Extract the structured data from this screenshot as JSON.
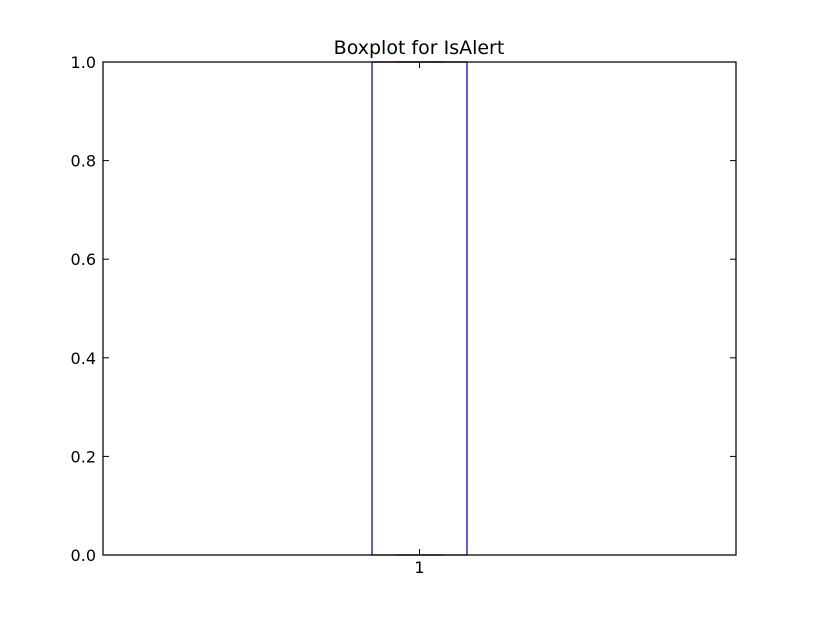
{
  "chart_data": {
    "type": "box",
    "title": "Boxplot for IsAlert",
    "xlabel": "",
    "ylabel": "",
    "categories": [
      "1"
    ],
    "ylim": [
      0.0,
      1.0
    ],
    "y_ticks": [
      "0.0",
      "0.2",
      "0.4",
      "0.6",
      "0.8",
      "1.0"
    ],
    "y_tick_values": [
      0.0,
      0.2,
      0.4,
      0.6,
      0.8,
      1.0
    ],
    "series": [
      {
        "name": "IsAlert",
        "min": 0.0,
        "q1": 0.0,
        "median": 1.0,
        "q3": 1.0,
        "max": 1.0,
        "outliers": []
      }
    ],
    "colors": {
      "box": "#0000cc",
      "median": "#cc0000",
      "whisker": "#0000cc",
      "cap": "#000000"
    }
  }
}
